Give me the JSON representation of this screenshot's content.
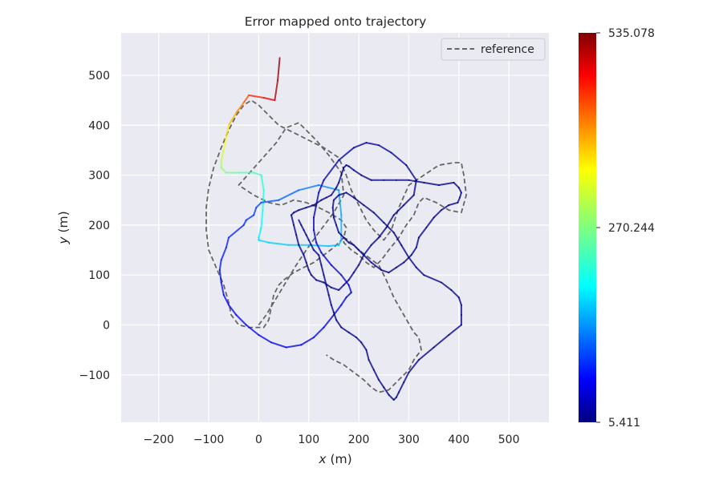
{
  "chart_data": {
    "type": "line",
    "title": "Error mapped onto trajectory",
    "xlabel_var": "x",
    "xlabel_unit": " (m)",
    "ylabel_var": "y",
    "ylabel_unit": " (m)",
    "xlim": [
      -275,
      580
    ],
    "ylim": [
      -195,
      585
    ],
    "x_ticks": [
      -200,
      -100,
      0,
      100,
      200,
      300,
      400,
      500
    ],
    "x_tick_labels": [
      "−200",
      "−100",
      "0",
      "100",
      "200",
      "300",
      "400",
      "500"
    ],
    "y_ticks": [
      -100,
      0,
      100,
      200,
      300,
      400,
      500
    ],
    "y_tick_labels": [
      "−100",
      "0",
      "100",
      "200",
      "300",
      "400",
      "500"
    ],
    "grid": true,
    "legend": {
      "placement": "upper-right",
      "entries": [
        "reference"
      ]
    },
    "colorbar": {
      "min": 5.411,
      "max": 535.078,
      "tick_values": [
        535.078,
        270.244,
        5.411
      ],
      "tick_labels": [
        "535.078",
        "270.244",
        "5.411"
      ],
      "colormap": "jet"
    },
    "series": [
      {
        "name": "reference",
        "style": "dashed",
        "color": "#666666",
        "x": [
          0,
          15,
          30,
          45,
          60,
          75,
          95,
          120,
          150,
          170,
          165,
          140,
          115,
          95,
          80,
          55,
          45,
          35,
          -40,
          -10,
          20,
          45,
          70,
          95,
          120,
          140,
          165,
          175,
          170,
          150,
          130,
          110,
          90,
          70,
          50,
          40,
          30,
          25,
          20,
          10,
          0,
          -20,
          -40,
          -55,
          -60,
          -70,
          -85,
          -100,
          -105,
          -105,
          -100,
          -90,
          -75,
          -60,
          -45,
          -30,
          -15,
          0,
          20,
          40,
          70,
          100,
          130,
          160,
          175,
          185,
          200,
          215,
          230,
          250,
          265,
          280,
          300,
          330,
          360,
          390,
          405,
          410,
          415,
          405,
          380,
          355,
          330,
          320,
          310,
          295,
          280,
          260,
          245,
          230,
          215,
          200,
          185,
          170,
          170,
          180,
          200,
          220,
          240,
          255,
          270,
          290,
          310,
          320,
          325,
          310,
          300,
          280,
          260,
          240,
          225,
          210,
          190,
          170,
          150,
          135
        ],
        "y": [
          0,
          20,
          45,
          70,
          95,
          120,
          150,
          185,
          225,
          260,
          305,
          340,
          370,
          390,
          405,
          395,
          380,
          365,
          280,
          260,
          245,
          240,
          250,
          245,
          235,
          225,
          210,
          195,
          175,
          155,
          140,
          125,
          115,
          105,
          90,
          80,
          60,
          35,
          10,
          -5,
          -5,
          -5,
          0,
          20,
          45,
          80,
          115,
          150,
          190,
          235,
          275,
          315,
          355,
          390,
          420,
          440,
          450,
          440,
          420,
          400,
          385,
          370,
          355,
          335,
          300,
          270,
          240,
          210,
          190,
          170,
          190,
          235,
          280,
          300,
          320,
          325,
          325,
          300,
          260,
          225,
          230,
          245,
          255,
          245,
          220,
          200,
          175,
          150,
          130,
          115,
          125,
          140,
          150,
          165,
          175,
          170,
          150,
          135,
          120,
          90,
          55,
          20,
          -15,
          -25,
          -50,
          -70,
          -90,
          -110,
          -130,
          -135,
          -125,
          -110,
          -95,
          -80,
          -70,
          -60
        ]
      },
      {
        "name": "",
        "style": "colormapped",
        "x": [
          42,
          38,
          32,
          10,
          -20,
          -30,
          -45,
          -60,
          -65,
          -70,
          -75,
          -75,
          -65,
          -40,
          -10,
          5,
          10,
          8,
          5,
          0,
          0,
          20,
          60,
          100,
          140,
          160,
          165,
          165,
          160,
          120,
          80,
          40,
          5,
          -5,
          -10,
          -25,
          -30,
          -60,
          -65,
          -75,
          -78,
          -75,
          -70,
          -60,
          -45,
          -25,
          0,
          25,
          55,
          85,
          110,
          130,
          150,
          165,
          175,
          185,
          180,
          165,
          145,
          125,
          115,
          110,
          110,
          115,
          120,
          130,
          160,
          190,
          215,
          240,
          265,
          295,
          315,
          310,
          290,
          270,
          255,
          240,
          225,
          210,
          200,
          190,
          180,
          170,
          160,
          145,
          130,
          115,
          105,
          100,
          95,
          90,
          80,
          75,
          70,
          65,
          70,
          80,
          95,
          110,
          125,
          135,
          145,
          155,
          160,
          165,
          170,
          175,
          180,
          190,
          205,
          225,
          250,
          275,
          300,
          330,
          360,
          390,
          400,
          405,
          402,
          398,
          380,
          365,
          350,
          335,
          320,
          315,
          305,
          290,
          275,
          260,
          245,
          225,
          210,
          200,
          190,
          180,
          175,
          170,
          165,
          160,
          155,
          150,
          148,
          150,
          160,
          175,
          190,
          210,
          230,
          250,
          270,
          285,
          300,
          315,
          330,
          365,
          385,
          400,
          405,
          405,
          405,
          380,
          350,
          320,
          300,
          290,
          280,
          275,
          270,
          260,
          250,
          240,
          230,
          220,
          215,
          205,
          195,
          180,
          165,
          155,
          150,
          145,
          140,
          135,
          130,
          125,
          120,
          110,
          105,
          100,
          95,
          90,
          85,
          80
        ],
        "y": [
          535,
          490,
          450,
          455,
          460,
          445,
          425,
          400,
          375,
          350,
          330,
          315,
          305,
          305,
          305,
          300,
          270,
          230,
          195,
          175,
          170,
          165,
          160,
          160,
          158,
          160,
          170,
          220,
          270,
          280,
          270,
          250,
          245,
          235,
          220,
          210,
          200,
          175,
          155,
          130,
          110,
          85,
          60,
          40,
          20,
          0,
          -20,
          -35,
          -45,
          -40,
          -25,
          -5,
          20,
          40,
          55,
          65,
          80,
          100,
          120,
          145,
          165,
          190,
          215,
          240,
          265,
          290,
          330,
          355,
          365,
          360,
          345,
          320,
          290,
          260,
          240,
          220,
          195,
          175,
          160,
          140,
          120,
          105,
          90,
          80,
          70,
          75,
          85,
          90,
          100,
          110,
          125,
          140,
          160,
          180,
          200,
          220,
          225,
          230,
          235,
          240,
          250,
          255,
          260,
          275,
          285,
          300,
          315,
          320,
          318,
          310,
          300,
          290,
          290,
          290,
          290,
          285,
          280,
          285,
          275,
          265,
          255,
          245,
          240,
          230,
          215,
          195,
          175,
          155,
          140,
          125,
          115,
          105,
          110,
          125,
          140,
          150,
          160,
          165,
          170,
          175,
          180,
          185,
          200,
          215,
          235,
          250,
          260,
          265,
          255,
          240,
          225,
          205,
          185,
          160,
          135,
          115,
          100,
          85,
          70,
          55,
          40,
          20,
          0,
          -20,
          -45,
          -70,
          -95,
          -115,
          -135,
          -145,
          -150,
          -140,
          -125,
          -110,
          -90,
          -70,
          -50,
          -35,
          -25,
          -15,
          -5,
          10,
          25,
          40,
          60,
          80,
          100,
          120,
          140,
          150,
          160,
          170,
          180,
          190,
          200,
          210
        ],
        "color_values": [
          535,
          520,
          500,
          470,
          440,
          420,
          390,
          360,
          340,
          320,
          300,
          280,
          270,
          250,
          240,
          230,
          220,
          210,
          200,
          190,
          185,
          180,
          175,
          172,
          170,
          168,
          165,
          160,
          150,
          140,
          130,
          120,
          110,
          105,
          100,
          95,
          90,
          88,
          85,
          83,
          80,
          78,
          76,
          74,
          72,
          70,
          68,
          66,
          64,
          62,
          60,
          58,
          56,
          54,
          52,
          50,
          48,
          46,
          44,
          42,
          40,
          38,
          36,
          34,
          32,
          30,
          28,
          26,
          24,
          22,
          20,
          18,
          16,
          14,
          12,
          10,
          10,
          10,
          10,
          10,
          10,
          10,
          10,
          10,
          10,
          10,
          10,
          10,
          10,
          10,
          10,
          10,
          10,
          10,
          10,
          10,
          10,
          10,
          10,
          10,
          10,
          10,
          10,
          10,
          10,
          10,
          10,
          10,
          10,
          10,
          10,
          10,
          10,
          10,
          10,
          10,
          10,
          10,
          10,
          10,
          10,
          10,
          10,
          10,
          10,
          10,
          10,
          10,
          10,
          10,
          10,
          10,
          10,
          10,
          10,
          10,
          10,
          10,
          10,
          10,
          10,
          10,
          10,
          10,
          10,
          10,
          10,
          10,
          10,
          10,
          10,
          10,
          10,
          10,
          10,
          10,
          10,
          10,
          10,
          10,
          10,
          10,
          10,
          10,
          10,
          10,
          10,
          10,
          10,
          10,
          10,
          10,
          10,
          10,
          10,
          10,
          10,
          10,
          10,
          10,
          10,
          10,
          10,
          10,
          10,
          10,
          10,
          10,
          10,
          10,
          10,
          10,
          10,
          10,
          10,
          10,
          10,
          10,
          10,
          10,
          10
        ]
      }
    ]
  }
}
